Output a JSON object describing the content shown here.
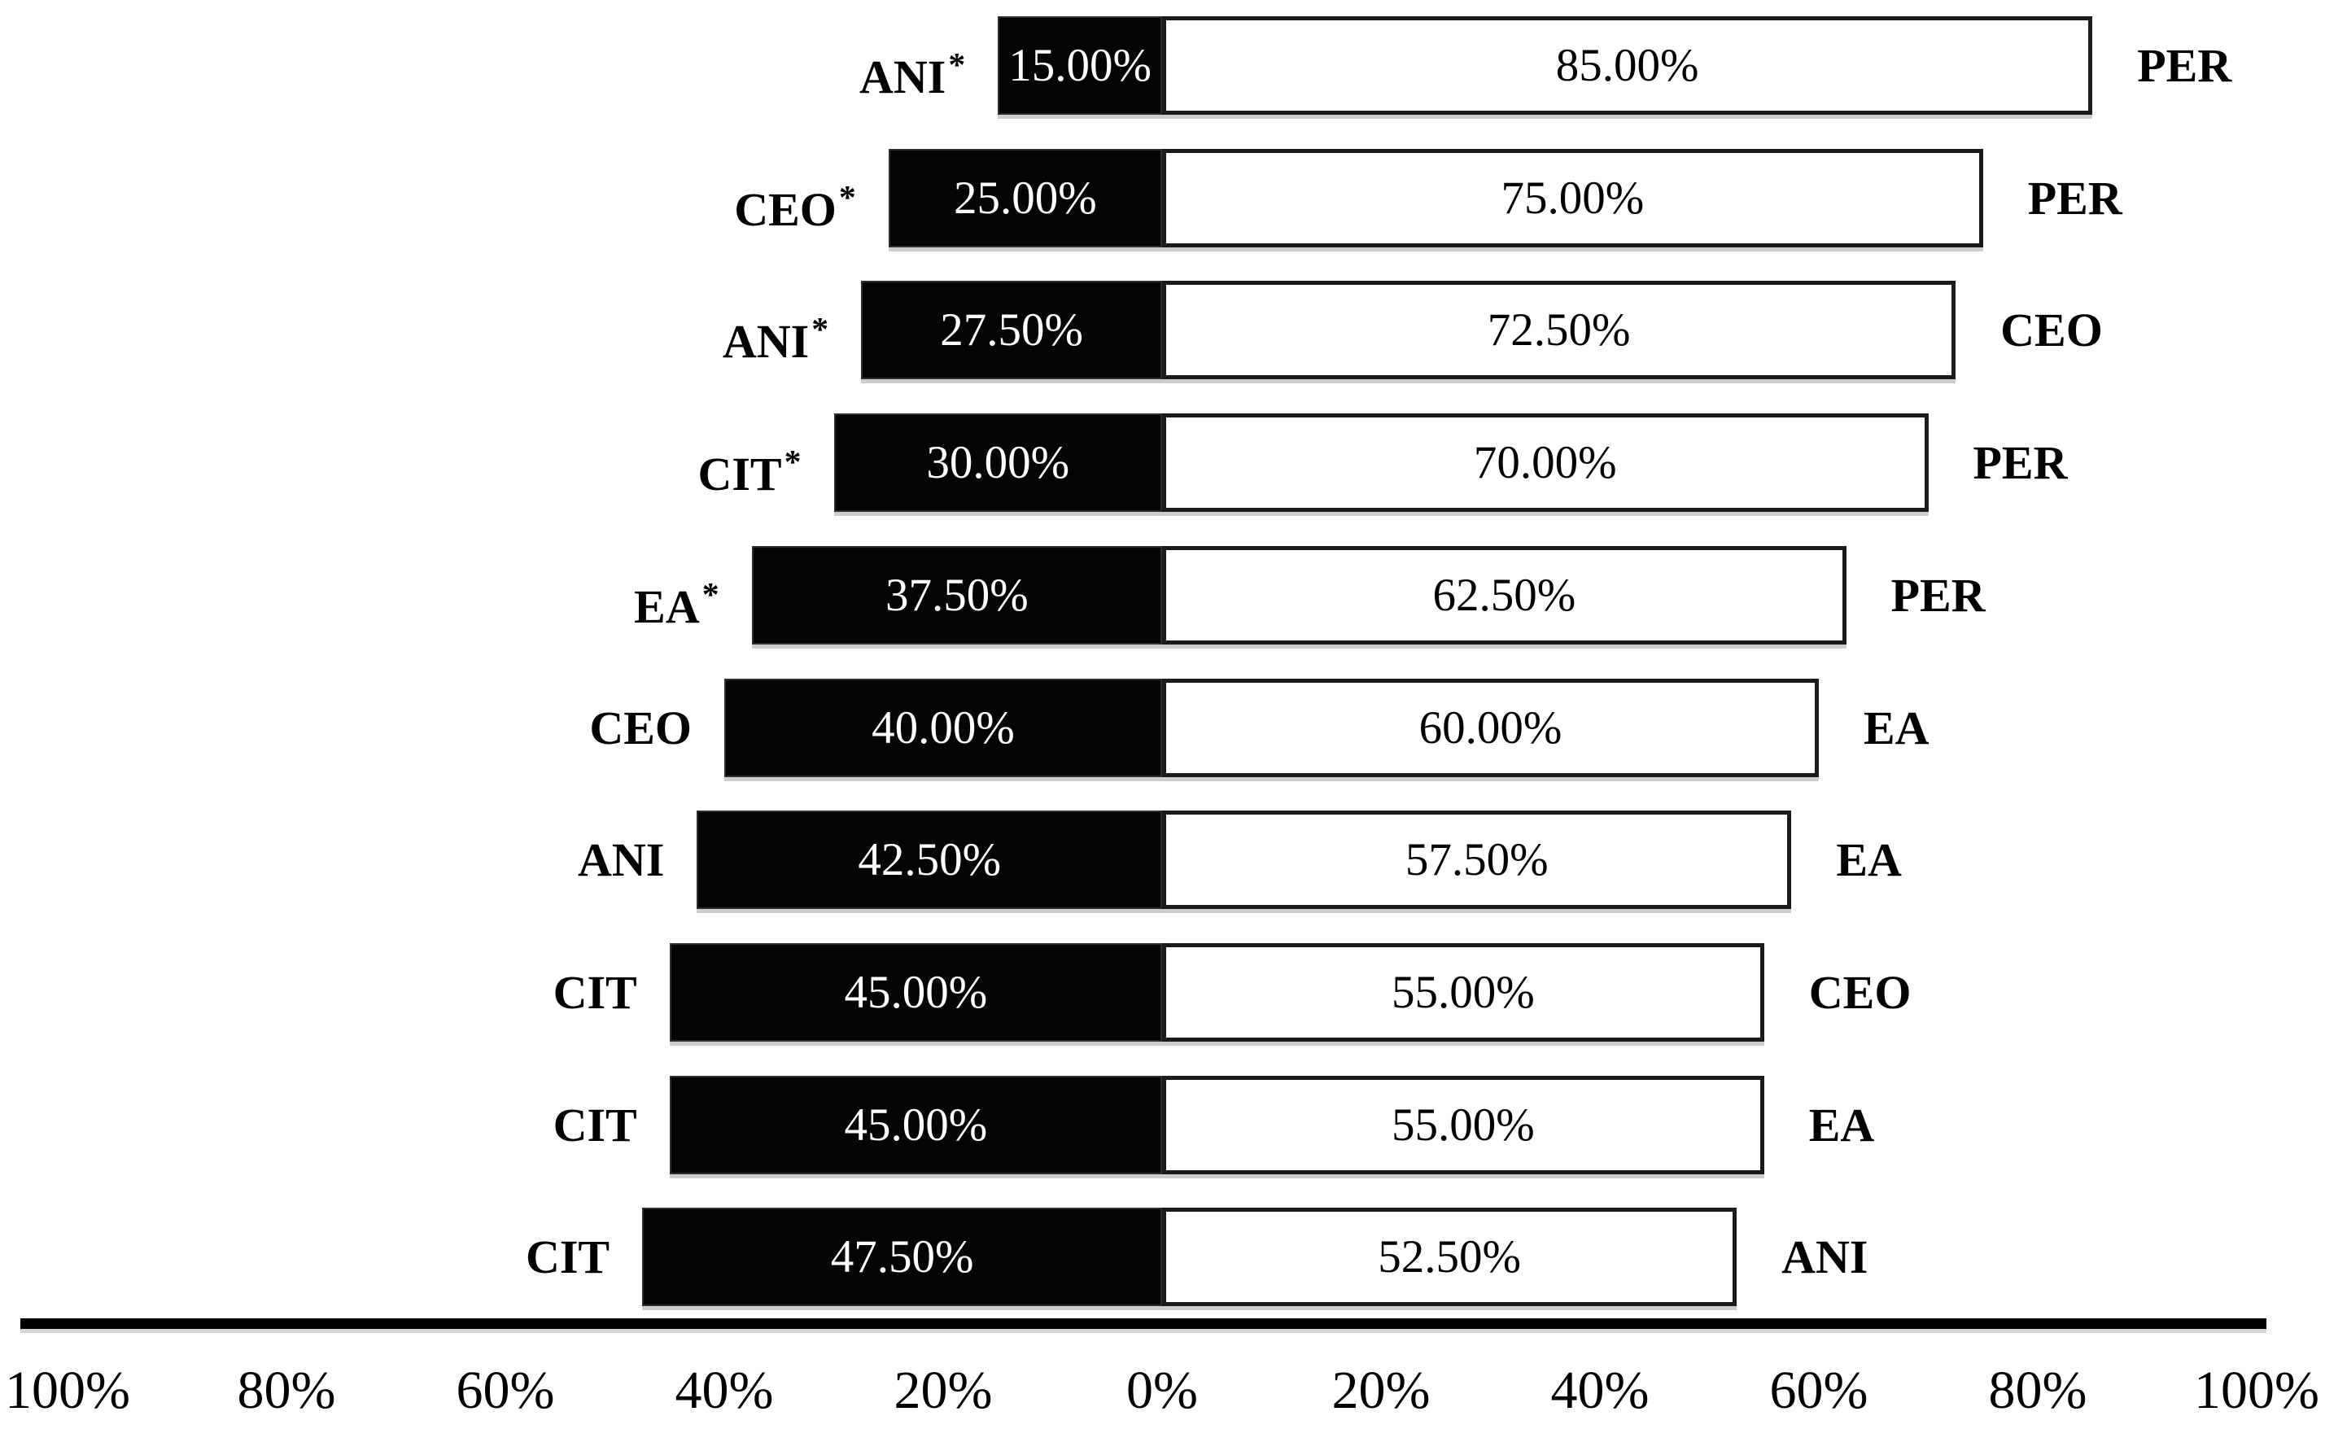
{
  "chart_data": {
    "type": "bar",
    "variant": "diverging-stacked-horizontal",
    "title": "",
    "legend_position": "none",
    "grid": false,
    "series_colors": {
      "left_segment": "#000000",
      "right_segment": "#ffffff"
    },
    "text_colors": {
      "on_black": "#ffffff",
      "on_white": "#000000",
      "labels": "#000000"
    },
    "rows": [
      {
        "left_label": "ANI",
        "starred": true,
        "black_value": 15.0,
        "black_label": "15.00%",
        "white_value": 85.0,
        "white_label": "85.00%",
        "right_label": "PER"
      },
      {
        "left_label": "CEO",
        "starred": true,
        "black_value": 25.0,
        "black_label": "25.00%",
        "white_value": 75.0,
        "white_label": "75.00%",
        "right_label": "PER"
      },
      {
        "left_label": "ANI",
        "starred": true,
        "black_value": 27.5,
        "black_label": "27.50%",
        "white_value": 72.5,
        "white_label": "72.50%",
        "right_label": "CEO"
      },
      {
        "left_label": "CIT",
        "starred": true,
        "black_value": 30.0,
        "black_label": "30.00%",
        "white_value": 70.0,
        "white_label": "70.00%",
        "right_label": "PER"
      },
      {
        "left_label": "EA",
        "starred": true,
        "black_value": 37.5,
        "black_label": "37.50%",
        "white_value": 62.5,
        "white_label": "62.50%",
        "right_label": "PER"
      },
      {
        "left_label": "CEO",
        "starred": false,
        "black_value": 40.0,
        "black_label": "40.00%",
        "white_value": 60.0,
        "white_label": "60.00%",
        "right_label": "EA"
      },
      {
        "left_label": "ANI",
        "starred": false,
        "black_value": 42.5,
        "black_label": "42.50%",
        "white_value": 57.5,
        "white_label": "57.50%",
        "right_label": "EA"
      },
      {
        "left_label": "CIT",
        "starred": false,
        "black_value": 45.0,
        "black_label": "45.00%",
        "white_value": 55.0,
        "white_label": "55.00%",
        "right_label": "CEO"
      },
      {
        "left_label": "CIT",
        "starred": false,
        "black_value": 45.0,
        "black_label": "45.00%",
        "white_value": 55.0,
        "white_label": "55.00%",
        "right_label": "EA"
      },
      {
        "left_label": "CIT",
        "starred": false,
        "black_value": 47.5,
        "black_label": "47.50%",
        "white_value": 52.5,
        "white_label": "52.50%",
        "right_label": "ANI"
      }
    ],
    "x_axis": {
      "range": [
        -100,
        100
      ],
      "tick_values": [
        -100,
        -80,
        -60,
        -40,
        -20,
        0,
        20,
        40,
        60,
        80,
        100
      ],
      "tick_labels": [
        "100%",
        "80%",
        "60%",
        "40%",
        "20%",
        "0%",
        "20%",
        "40%",
        "60%",
        "80%",
        "100%"
      ]
    }
  }
}
